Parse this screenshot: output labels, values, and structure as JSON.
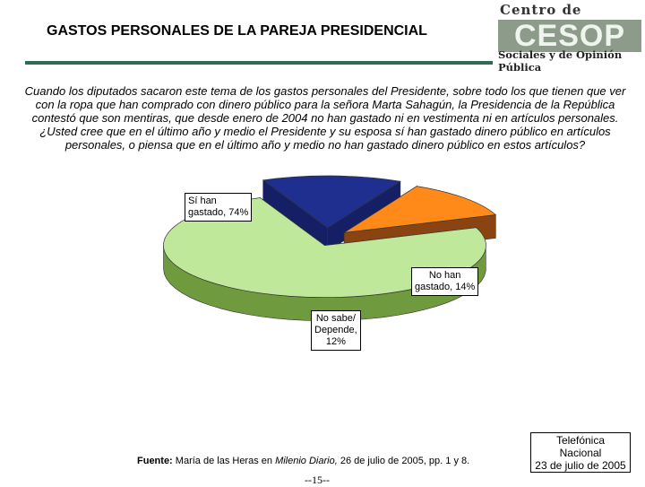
{
  "header": {
    "title": "GASTOS PERSONALES DE LA PAREJA PRESIDENCIAL"
  },
  "logo": {
    "top_text": "Centro de Estudios",
    "acronym": "CESOP",
    "bottom_text": "Sociales y de Opinión Pública"
  },
  "question": "Cuando los diputados sacaron este tema de los gastos personales del Presidente, sobre todo los que tienen que ver con la ropa que han comprado con dinero público para la señora Marta Sahagún, la Presidencia de la República contestó que son mentiras, que desde enero de 2004 no han gastado ni en vestimenta ni en artículos personales. ¿Usted cree que en el último año y medio el Presidente y su esposa sí han gastado dinero público en artículos personales, o piensa que en el último año y medio no han gastado dinero público en estos artículos?",
  "chart_data": {
    "type": "pie",
    "style": "3d-exploded",
    "slices": [
      {
        "label": "Sí han gastado, 74%",
        "value": 74,
        "color": "#bfe89a",
        "side_color": "#6f9a3e"
      },
      {
        "label": "No han gastado, 14%",
        "value": 14,
        "color": "#1f2f8f",
        "side_color": "#141f66"
      },
      {
        "label": "No sabe/ Depende, 12%",
        "value": 12,
        "color": "#ff8a1a",
        "side_color": "#8a4412"
      }
    ],
    "labels": {
      "si_line1": "Sí han",
      "si_line2": "gastado, 74%",
      "no_line1": "No han",
      "no_line2": "gastado, 14%",
      "ns_line1": "No sabe/",
      "ns_line2": "Depende,",
      "ns_line3": "12%"
    }
  },
  "footer": {
    "source_label": "Fuente:",
    "source_text_1": " María de las Heras en ",
    "source_publication": "Milenio Diario,",
    "source_text_2": " 26 de julio de 2005, pp. 1 y 8.",
    "page_number": "--15--",
    "stamp_line1": "Telefónica",
    "stamp_line2": "Nacional",
    "stamp_line3": "23 de julio de 2005"
  }
}
